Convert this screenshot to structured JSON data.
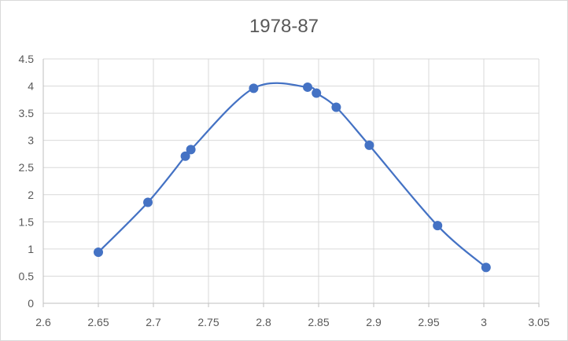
{
  "chart_data": {
    "type": "scatter",
    "title": "1978-87",
    "xlabel": "",
    "ylabel": "",
    "xlim": [
      2.6,
      3.05
    ],
    "ylim": [
      0,
      4.5
    ],
    "x_ticks": [
      "2.6",
      "2.65",
      "2.7",
      "2.75",
      "2.8",
      "2.85",
      "2.9",
      "2.95",
      "3",
      "3.05"
    ],
    "y_ticks": [
      "0",
      "0.5",
      "1",
      "1.5",
      "2",
      "2.5",
      "3",
      "3.5",
      "4",
      "4.5"
    ],
    "grid": true,
    "smooth_line": true,
    "series_color": "#4472c4",
    "series": [
      {
        "x": [
          2.65,
          2.695,
          2.729,
          2.734,
          2.791,
          2.84,
          2.848,
          2.866,
          2.896,
          2.958,
          3.002
        ],
        "y": [
          0.94,
          1.86,
          2.71,
          2.83,
          3.96,
          3.98,
          3.87,
          3.61,
          2.91,
          1.43,
          0.66
        ]
      }
    ]
  }
}
